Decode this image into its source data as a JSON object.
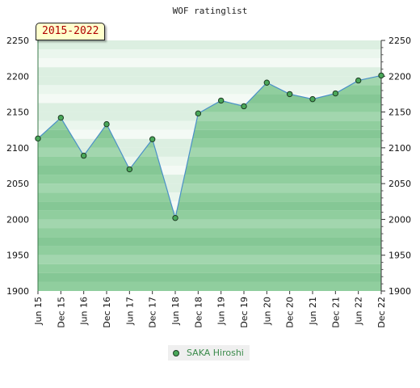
{
  "chart_data": {
    "type": "area",
    "title": "WOF ratinglist",
    "range_label": "2015-2022",
    "categories": [
      "Jun 15",
      "Dec 15",
      "Jun 16",
      "Dec 16",
      "Jun 17",
      "Dec 17",
      "Jun 18",
      "Dec 18",
      "Jun 19",
      "Dec 19",
      "Jun 20",
      "Dec 20",
      "Jun 21",
      "Dec 21",
      "Jun 22",
      "Dec 22"
    ],
    "series": [
      {
        "name": "SAKA Hiroshi",
        "values": [
          2113,
          2142,
          2089,
          2133,
          2070,
          2112,
          2002,
          2148,
          2166,
          2158,
          2191,
          2175,
          2168,
          2176,
          2194,
          2201
        ]
      }
    ],
    "ylim": [
      1900,
      2250
    ],
    "yticks": [
      1900,
      1950,
      2000,
      2050,
      2100,
      2150,
      2200,
      2250
    ],
    "xlabel": "",
    "ylabel": "",
    "legend": "bottom-center",
    "colors": {
      "line": "#4a90c8",
      "marker": "#4aa85a",
      "fill": "#4caf60"
    }
  }
}
